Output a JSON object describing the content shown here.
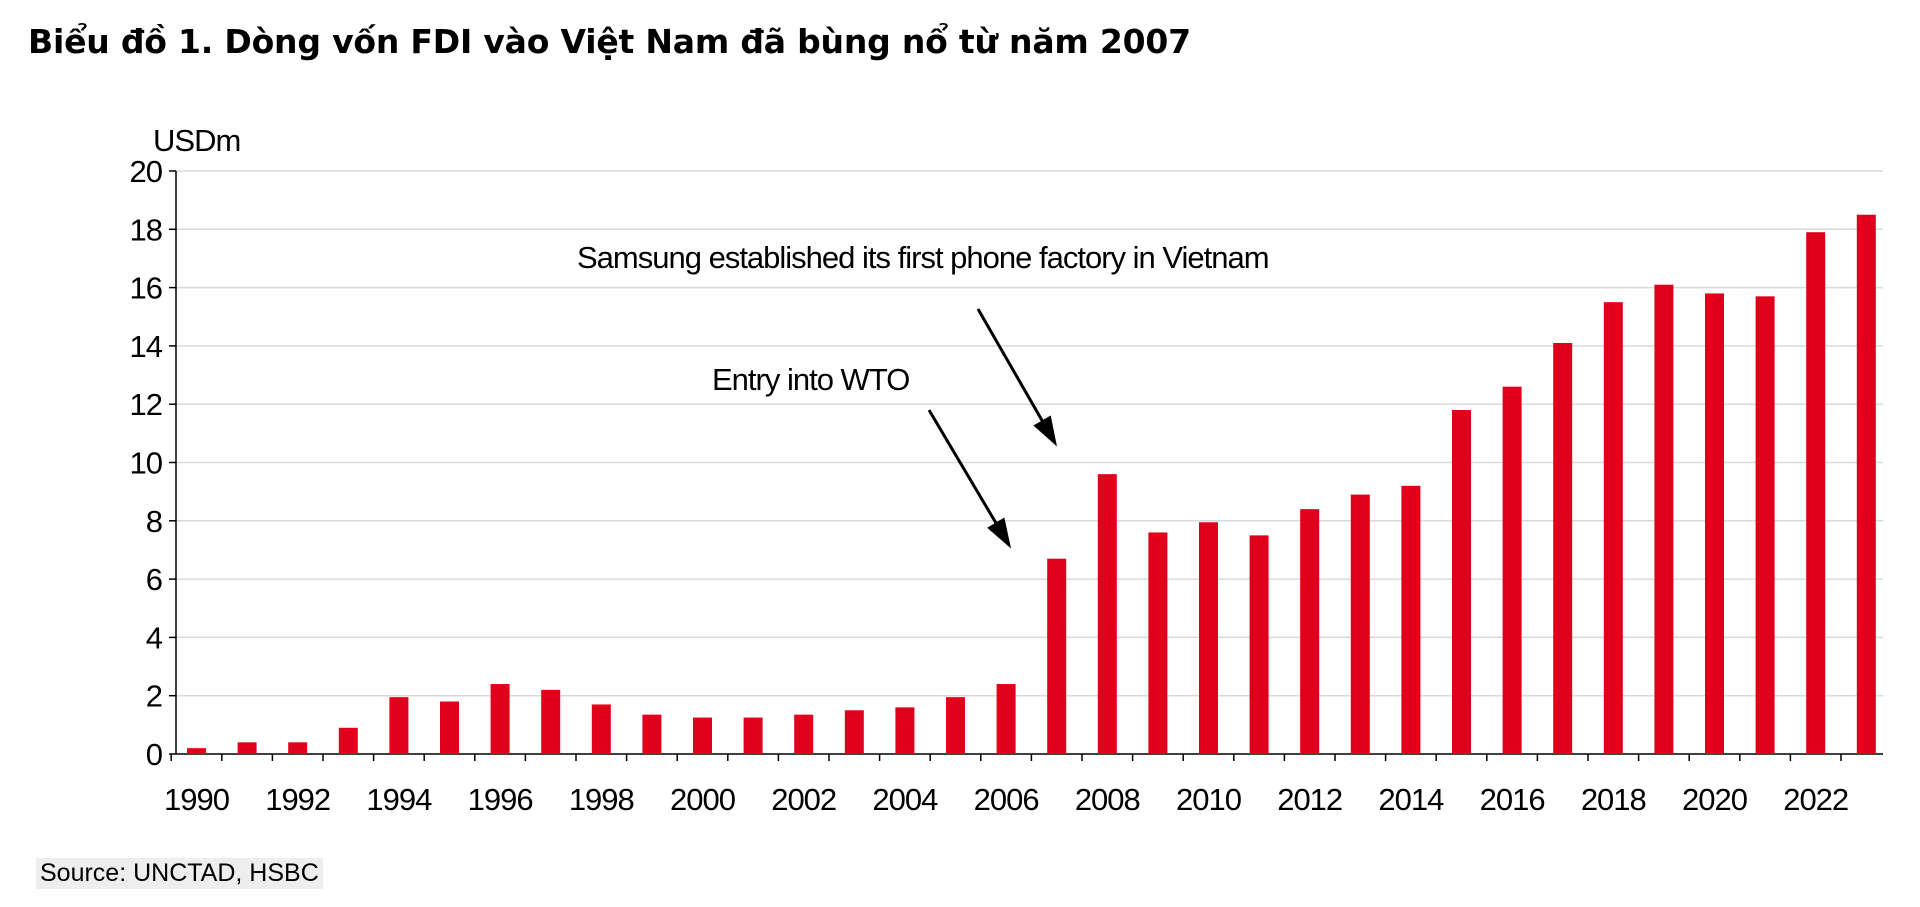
{
  "title": "Biểu đồ 1. Dòng vốn FDI vào Việt Nam đã bùng nổ từ năm 2007",
  "source": "Source: UNCTAD, HSBC",
  "chart_data": {
    "type": "bar",
    "unit_label": "USDm",
    "ylim": [
      0,
      20
    ],
    "yticks": [
      0,
      2,
      4,
      6,
      8,
      10,
      12,
      14,
      16,
      18,
      20
    ],
    "grid": true,
    "bar_color": "#e0001b",
    "categories": [
      1990,
      1991,
      1992,
      1993,
      1994,
      1995,
      1996,
      1997,
      1998,
      1999,
      2000,
      2001,
      2002,
      2003,
      2004,
      2005,
      2006,
      2007,
      2008,
      2009,
      2010,
      2011,
      2012,
      2013,
      2014,
      2015,
      2016,
      2017,
      2018,
      2019,
      2020,
      2021,
      2022,
      2023
    ],
    "xtick_labels": [
      "1990",
      "1992",
      "1994",
      "1996",
      "1998",
      "2000",
      "2002",
      "2004",
      "2006",
      "2008",
      "2010",
      "2012",
      "2014",
      "2016",
      "2018",
      "2020",
      "2022"
    ],
    "values": [
      0.2,
      0.4,
      0.4,
      0.9,
      1.95,
      1.8,
      2.4,
      2.2,
      1.7,
      1.35,
      1.25,
      1.25,
      1.35,
      1.5,
      1.6,
      1.95,
      2.4,
      6.7,
      9.6,
      7.6,
      7.95,
      7.5,
      8.4,
      8.9,
      9.2,
      11.8,
      12.6,
      14.1,
      15.5,
      16.1,
      15.8,
      15.7,
      17.9,
      18.5
    ],
    "annotations": [
      {
        "text": "Samsung established its first phone factory in Vietnam",
        "target": 2008
      },
      {
        "text": "Entry into WTO",
        "target": 2007
      }
    ]
  }
}
